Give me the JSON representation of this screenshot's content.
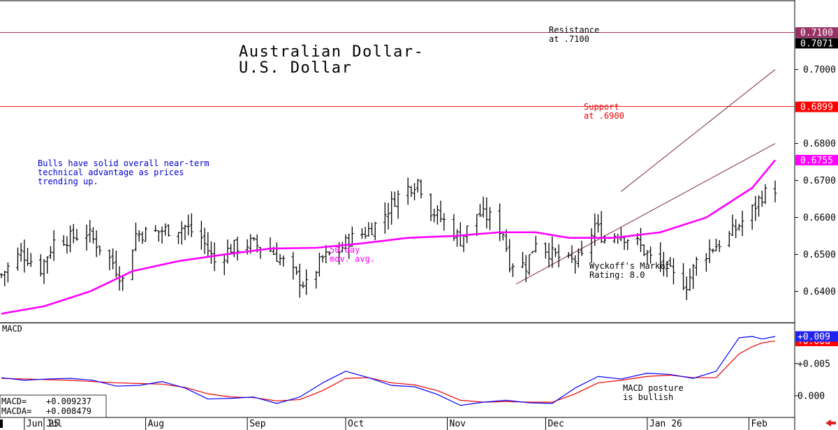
{
  "chart_data": [
    {
      "type": "bar",
      "subtype": "ohlc",
      "title": "Australian Dollar-\nU.S. Dollar",
      "y_axis_side": "right",
      "ylim": [
        0.6335,
        0.7135
      ],
      "y_ticks": [
        "0.6400",
        "0.6500",
        "0.6600",
        "0.6700",
        "0.6800",
        "0.7000"
      ],
      "x_ticks": [
        {
          "label": "Jun 25",
          "date": "2025-06-25"
        },
        {
          "label": "Jul",
          "date": "2025-07-01"
        },
        {
          "label": "Aug",
          "date": "2025-08-01"
        },
        {
          "label": "Sep",
          "date": "2025-09-01"
        },
        {
          "label": "Oct",
          "date": "2025-10-01"
        },
        {
          "label": "Nov",
          "date": "2025-11-01"
        },
        {
          "label": "Dec",
          "date": "2025-12-01"
        },
        {
          "label": "Jan 26",
          "date": "2026-01-01"
        },
        {
          "label": "Feb",
          "date": "2026-02-01"
        }
      ],
      "x_start": "2025-06-18",
      "x_end": "2026-02-09",
      "bar_color": "#000000",
      "close_path": [
        [
          "2025-06-18",
          0.6445
        ],
        [
          "2025-06-24",
          0.6505
        ],
        [
          "2025-06-30",
          0.6462
        ],
        [
          "2025-07-04",
          0.6535
        ],
        [
          "2025-07-09",
          0.6545
        ],
        [
          "2025-07-14",
          0.656
        ],
        [
          "2025-07-18",
          0.652
        ],
        [
          "2025-07-22",
          0.6478
        ],
        [
          "2025-07-25",
          0.643
        ],
        [
          "2025-07-29",
          0.6555
        ],
        [
          "2025-08-04",
          0.656
        ],
        [
          "2025-08-08",
          0.6568
        ],
        [
          "2025-08-13",
          0.6575
        ],
        [
          "2025-08-18",
          0.6545
        ],
        [
          "2025-08-22",
          0.648
        ],
        [
          "2025-08-27",
          0.6518
        ],
        [
          "2025-09-02",
          0.653
        ],
        [
          "2025-09-08",
          0.6512
        ],
        [
          "2025-09-12",
          0.648
        ],
        [
          "2025-09-16",
          0.644
        ],
        [
          "2025-09-19",
          0.6415
        ],
        [
          "2025-09-24",
          0.649
        ],
        [
          "2025-09-29",
          0.651
        ],
        [
          "2025-10-02",
          0.654
        ],
        [
          "2025-10-07",
          0.656
        ],
        [
          "2025-10-10",
          0.658
        ],
        [
          "2025-10-13",
          0.661
        ],
        [
          "2025-10-16",
          0.665
        ],
        [
          "2025-10-20",
          0.668
        ],
        [
          "2025-10-23",
          0.67
        ],
        [
          "2025-10-27",
          0.662
        ],
        [
          "2025-10-31",
          0.659
        ],
        [
          "2025-11-05",
          0.654
        ],
        [
          "2025-11-10",
          0.661
        ],
        [
          "2025-11-14",
          0.66
        ],
        [
          "2025-11-18",
          0.656
        ],
        [
          "2025-11-20",
          0.648
        ],
        [
          "2025-11-25",
          0.647
        ],
        [
          "2025-11-28",
          0.654
        ],
        [
          "2025-12-03",
          0.65
        ],
        [
          "2025-12-08",
          0.648
        ],
        [
          "2025-12-12",
          0.649
        ],
        [
          "2025-12-16",
          0.658
        ],
        [
          "2025-12-19",
          0.654
        ],
        [
          "2025-12-23",
          0.656
        ],
        [
          "2025-12-29",
          0.653
        ],
        [
          "2026-01-02",
          0.649
        ],
        [
          "2026-01-06",
          0.647
        ],
        [
          "2026-01-09",
          0.644
        ],
        [
          "2026-01-13",
          0.642
        ],
        [
          "2026-01-16",
          0.648
        ],
        [
          "2026-01-21",
          0.652
        ],
        [
          "2026-01-26",
          0.655
        ],
        [
          "2026-01-29",
          0.658
        ],
        [
          "2026-02-02",
          0.662
        ],
        [
          "2026-02-05",
          0.666
        ],
        [
          "2026-02-09",
          0.668
        ]
      ],
      "series": [
        {
          "name": "50-day mov. avg.",
          "color": "#ff00ff",
          "points": [
            [
              "2025-06-18",
              0.634
            ],
            [
              "2025-07-01",
              0.636
            ],
            [
              "2025-07-15",
              0.64
            ],
            [
              "2025-07-28",
              0.6455
            ],
            [
              "2025-08-11",
              0.6482
            ],
            [
              "2025-08-25",
              0.65
            ],
            [
              "2025-09-08",
              0.6516
            ],
            [
              "2025-09-22",
              0.6518
            ],
            [
              "2025-10-06",
              0.653
            ],
            [
              "2025-10-20",
              0.6545
            ],
            [
              "2025-11-03",
              0.655
            ],
            [
              "2025-11-17",
              0.656
            ],
            [
              "2025-11-28",
              0.656
            ],
            [
              "2025-12-08",
              0.6545
            ],
            [
              "2025-12-22",
              0.6545
            ],
            [
              "2026-01-05",
              0.656
            ],
            [
              "2026-01-19",
              0.66
            ],
            [
              "2026-02-02",
              0.668
            ],
            [
              "2026-02-09",
              0.6755
            ]
          ]
        }
      ],
      "lines": [
        {
          "name": "resistance",
          "value": 0.71,
          "color": "#aa3355"
        },
        {
          "name": "support",
          "value": 0.69,
          "color": "#ee2222"
        }
      ],
      "trendlines": [
        {
          "from": [
            "2025-11-22",
            0.642
          ],
          "to": [
            "2026-02-09",
            0.68
          ],
          "color": "#7a2a3a"
        },
        {
          "from": [
            "2025-12-24",
            0.667
          ],
          "to": [
            "2026-02-09",
            0.7
          ],
          "color": "#7a2a3a"
        }
      ],
      "price_labels": [
        {
          "text": "0.7100",
          "value": 0.71,
          "bg": "#993366",
          "fg": "#ffffff"
        },
        {
          "text": "0.7071",
          "value": 0.7071,
          "bg": "#000000",
          "fg": "#ffffff"
        },
        {
          "text": "0.6899",
          "value": 0.6899,
          "bg": "#ff0000",
          "fg": "#ffffff"
        },
        {
          "text": "0.6755",
          "value": 0.6755,
          "bg": "#ff00ff",
          "fg": "#ffffff"
        }
      ],
      "annotations": {
        "resistance": "Resistance\nat .7100",
        "support": "Support\nat .6900",
        "bulls": "Bulls have solid overall near-term\ntechnical advantage as prices\ntrending up.",
        "ma_label": "50-day\nmov. avg.",
        "wyckoff": "Wyckoff's Market\nRating: 8.0"
      },
      "colors": {
        "resistance_text": "#000000",
        "support_text": "#ee0000",
        "bulls_text": "#0000cc",
        "ma_text": "#ff00ff",
        "wyckoff_text": "#000000"
      }
    },
    {
      "type": "line",
      "title": "MACD",
      "ylim": [
        -0.0025,
        0.0105
      ],
      "y_ticks": [
        "+0.005",
        "0.000"
      ],
      "series": [
        {
          "name": "MACD",
          "color": "#0000ff",
          "points": [
            [
              "2025-06-18",
              0.0028
            ],
            [
              "2025-06-25",
              0.0024
            ],
            [
              "2025-07-02",
              0.0026
            ],
            [
              "2025-07-09",
              0.0027
            ],
            [
              "2025-07-16",
              0.0024
            ],
            [
              "2025-07-23",
              0.0015
            ],
            [
              "2025-07-30",
              0.0016
            ],
            [
              "2025-08-06",
              0.0022
            ],
            [
              "2025-08-13",
              0.0012
            ],
            [
              "2025-08-20",
              -0.0005
            ],
            [
              "2025-08-27",
              -0.0004
            ],
            [
              "2025-09-03",
              -0.0002
            ],
            [
              "2025-09-10",
              -0.0012
            ],
            [
              "2025-09-17",
              -0.0002
            ],
            [
              "2025-09-24",
              0.002
            ],
            [
              "2025-10-01",
              0.0038
            ],
            [
              "2025-10-08",
              0.0028
            ],
            [
              "2025-10-15",
              0.0016
            ],
            [
              "2025-10-22",
              0.0014
            ],
            [
              "2025-10-29",
              0.0002
            ],
            [
              "2025-11-05",
              -0.0015
            ],
            [
              "2025-11-12",
              -0.001
            ],
            [
              "2025-11-19",
              -0.0007
            ],
            [
              "2025-11-26",
              -0.0011
            ],
            [
              "2025-12-03",
              -0.0012
            ],
            [
              "2025-12-10",
              0.0012
            ],
            [
              "2025-12-17",
              0.003
            ],
            [
              "2025-12-24",
              0.0026
            ],
            [
              "2026-01-01",
              0.0035
            ],
            [
              "2026-01-08",
              0.0033
            ],
            [
              "2026-01-15",
              0.0027
            ],
            [
              "2026-01-22",
              0.0038
            ],
            [
              "2026-01-29",
              0.009
            ],
            [
              "2026-02-02",
              0.0092
            ],
            [
              "2026-02-05",
              0.0088
            ],
            [
              "2026-02-09",
              0.0092
            ]
          ]
        },
        {
          "name": "MACDA",
          "color": "#ee0000",
          "points": [
            [
              "2025-06-18",
              0.0027
            ],
            [
              "2025-06-25",
              0.0026
            ],
            [
              "2025-07-02",
              0.0025
            ],
            [
              "2025-07-09",
              0.0024
            ],
            [
              "2025-07-16",
              0.0022
            ],
            [
              "2025-07-23",
              0.002
            ],
            [
              "2025-07-30",
              0.0019
            ],
            [
              "2025-08-06",
              0.0018
            ],
            [
              "2025-08-13",
              0.0013
            ],
            [
              "2025-08-20",
              0.0003
            ],
            [
              "2025-08-27",
              -0.0002
            ],
            [
              "2025-09-03",
              -0.0003
            ],
            [
              "2025-09-10",
              -0.0008
            ],
            [
              "2025-09-17",
              -0.0006
            ],
            [
              "2025-09-24",
              0.0008
            ],
            [
              "2025-10-01",
              0.0027
            ],
            [
              "2025-10-08",
              0.0028
            ],
            [
              "2025-10-15",
              0.002
            ],
            [
              "2025-10-22",
              0.0017
            ],
            [
              "2025-10-29",
              0.0008
            ],
            [
              "2025-11-05",
              -0.0007
            ],
            [
              "2025-11-12",
              -0.001
            ],
            [
              "2025-11-19",
              -0.0009
            ],
            [
              "2025-11-26",
              -0.001
            ],
            [
              "2025-12-03",
              -0.001
            ],
            [
              "2025-12-10",
              0.0003
            ],
            [
              "2025-12-17",
              0.002
            ],
            [
              "2025-12-24",
              0.0024
            ],
            [
              "2026-01-01",
              0.003
            ],
            [
              "2026-01-08",
              0.0032
            ],
            [
              "2026-01-15",
              0.0028
            ],
            [
              "2026-01-22",
              0.0028
            ],
            [
              "2026-01-29",
              0.0065
            ],
            [
              "2026-02-02",
              0.0076
            ],
            [
              "2026-02-05",
              0.0082
            ],
            [
              "2026-02-09",
              0.0085
            ]
          ]
        }
      ],
      "price_labels": [
        {
          "text": "+0.009",
          "value": 0.0092,
          "bg": "#2222ee",
          "fg": "#ffffff"
        },
        {
          "text": "+0.008",
          "value": 0.0085,
          "bg": "#ff0000",
          "fg": "#ffffff"
        }
      ],
      "readout": {
        "macd_label": "MACD=",
        "macd_value": "+0.009237",
        "macda_label": "MACDA=",
        "macda_value": "+0.008479"
      },
      "annotation": "MACD posture\nis bullish"
    }
  ]
}
